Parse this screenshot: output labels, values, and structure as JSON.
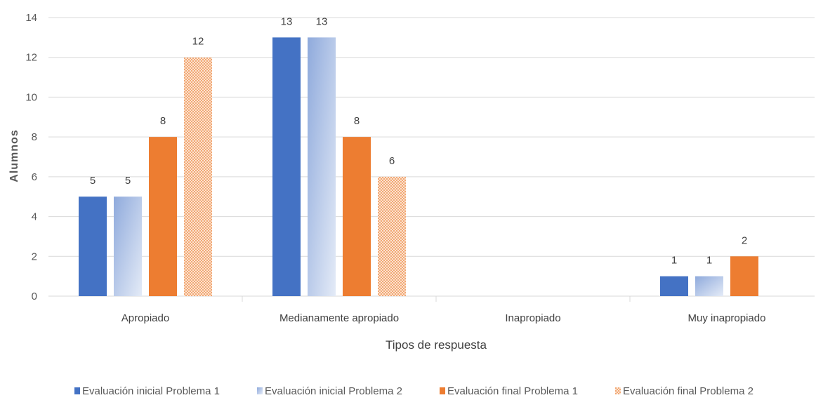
{
  "chart_data": {
    "type": "bar",
    "categories": [
      "Apropiado",
      "Medianamente apropiado",
      "Inapropiado",
      "Muy inapropiado"
    ],
    "series": [
      {
        "name": "Evaluación inicial Problema 1",
        "values": [
          5,
          13,
          0,
          1
        ],
        "color": "#4472C4",
        "fill": "solid"
      },
      {
        "name": "Evaluación inicial Problema 2",
        "values": [
          5,
          13,
          0,
          1
        ],
        "color": "#8FAADC",
        "fill": "gradient"
      },
      {
        "name": "Evaluación final Problema 1",
        "values": [
          8,
          8,
          0,
          2
        ],
        "color": "#ED7D31",
        "fill": "solid"
      },
      {
        "name": "Evaluación final Problema 2",
        "values": [
          12,
          6,
          0,
          0
        ],
        "color": "#F4B183",
        "fill": "dotted"
      }
    ],
    "xlabel": "Tipos de respuesta",
    "ylabel": "Alumnos",
    "ylim": [
      0,
      14
    ],
    "yticks": [
      0,
      2,
      4,
      6,
      8,
      10,
      12,
      14
    ],
    "grid": true,
    "legend_position": "bottom"
  }
}
